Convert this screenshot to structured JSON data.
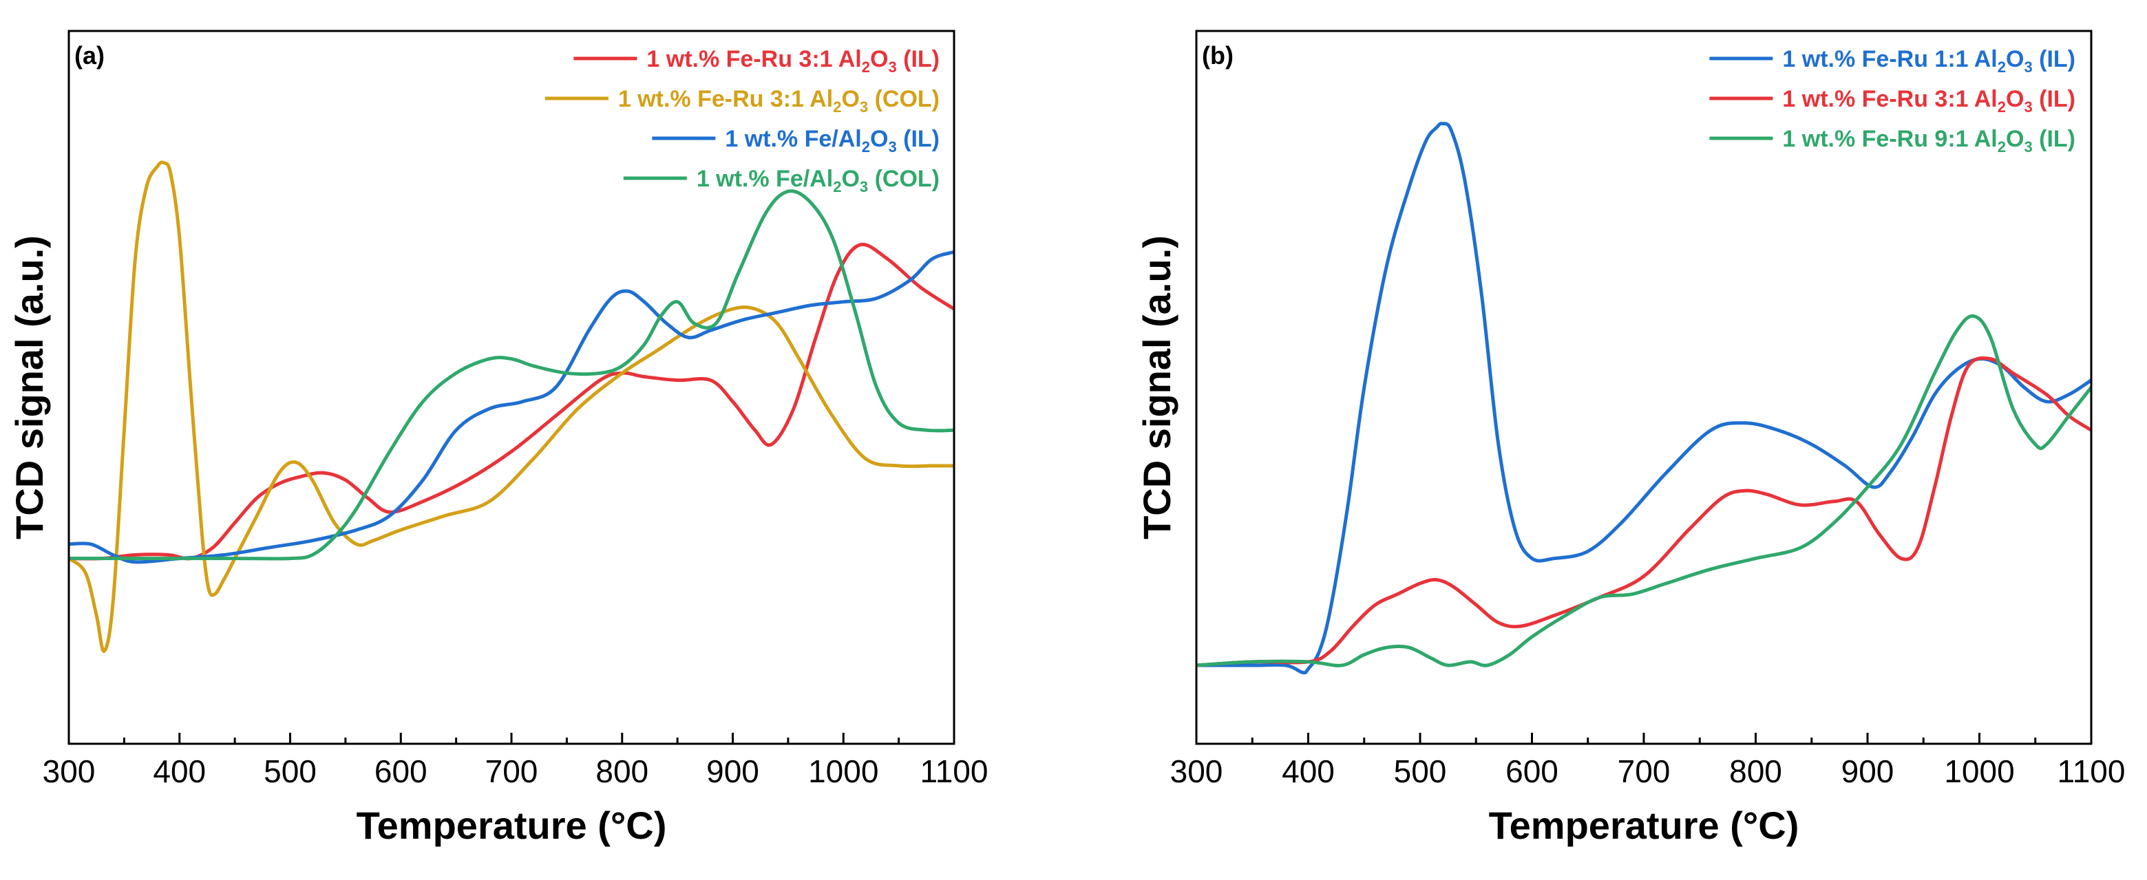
{
  "chart_data": [
    {
      "type": "line",
      "panel_label": "(a)",
      "xlabel": "Temperature (°C)",
      "ylabel": "TCD signal (a.u.)",
      "xlim": [
        300,
        1100
      ],
      "ylim": [
        0,
        100
      ],
      "xticks": [
        300,
        400,
        500,
        600,
        700,
        800,
        900,
        1000,
        1100
      ],
      "yticks_shown": false,
      "legend_position": "top-right",
      "series": [
        {
          "name": "1 wt.% Fe-Ru 3:1 Al2O3 (IL)",
          "legend": {
            "prefix": "1 wt.% Fe-Ru 3:1 Al",
            "sub": "2",
            "mid": "O",
            "sub2": "3",
            "suffix": " (IL)"
          },
          "color": "#e8333a",
          "x": [
            300,
            330,
            360,
            390,
            410,
            430,
            450,
            470,
            490,
            510,
            530,
            550,
            570,
            590,
            620,
            660,
            700,
            740,
            780,
            800,
            820,
            850,
            880,
            900,
            920,
            935,
            955,
            975,
            995,
            1015,
            1040,
            1070,
            1100
          ],
          "y": [
            26,
            26,
            26.5,
            26.5,
            26,
            27.5,
            31,
            34.5,
            36.5,
            37.5,
            38,
            37,
            34.5,
            32.5,
            34,
            37,
            41,
            46,
            51,
            52,
            51.5,
            51,
            51,
            48,
            44,
            42,
            47,
            57,
            66,
            70,
            68,
            64,
            61
          ]
        },
        {
          "name": "1 wt.% Fe-Ru 3:1 Al2O3 (COL)",
          "legend": {
            "prefix": "1 wt.% Fe-Ru 3:1 Al",
            "sub": "2",
            "mid": "O",
            "sub2": "3",
            "suffix": " (COL)"
          },
          "color": "#d4a017",
          "x": [
            300,
            315,
            325,
            332,
            340,
            350,
            360,
            370,
            380,
            386,
            392,
            400,
            410,
            420,
            426,
            432,
            440,
            450,
            470,
            490,
            505,
            520,
            540,
            560,
            575,
            600,
            640,
            680,
            720,
            760,
            800,
            830,
            870,
            900,
            920,
            940,
            960,
            990,
            1020,
            1050,
            1080,
            1100
          ],
          "y": [
            26,
            24,
            18,
            13,
            20,
            44,
            68,
            78,
            81,
            81.5,
            80,
            71,
            50,
            30,
            22,
            21,
            23,
            26,
            32,
            38,
            39.5,
            37,
            31,
            28,
            28.5,
            30,
            32,
            34,
            40,
            47,
            52,
            55,
            59,
            61,
            61,
            59,
            54,
            46,
            40,
            39,
            39,
            39
          ]
        },
        {
          "name": "1 wt.% Fe/Al2O3 (IL)",
          "legend": {
            "prefix": "1 wt.% Fe/Al",
            "sub": "2",
            "mid": "O",
            "sub2": "3",
            "suffix": " (IL)"
          },
          "color": "#1f6fd1",
          "x": [
            300,
            320,
            340,
            360,
            400,
            440,
            480,
            520,
            560,
            590,
            620,
            650,
            680,
            710,
            740,
            770,
            790,
            805,
            820,
            840,
            860,
            880,
            910,
            940,
            970,
            1000,
            1030,
            1060,
            1080,
            1100
          ],
          "y": [
            28,
            28,
            26.5,
            25.5,
            26,
            26.5,
            27.5,
            28.5,
            30,
            32,
            37,
            44,
            47,
            48,
            50,
            58,
            62.5,
            63.5,
            62,
            59,
            57,
            58,
            59.5,
            60.5,
            61.5,
            62,
            62.5,
            65,
            68,
            69
          ]
        },
        {
          "name": "1 wt.% Fe/Al2O3 (COL)",
          "legend": {
            "prefix": "1 wt.% Fe/Al",
            "sub": "2",
            "mid": "O",
            "sub2": "3",
            "suffix": " (COL)"
          },
          "color": "#2fa86b",
          "x": [
            300,
            350,
            400,
            450,
            500,
            520,
            540,
            560,
            590,
            620,
            650,
            680,
            700,
            720,
            750,
            780,
            800,
            820,
            835,
            850,
            865,
            885,
            905,
            930,
            950,
            970,
            990,
            1010,
            1030,
            1050,
            1075,
            1100
          ],
          "y": [
            26,
            26,
            26,
            26,
            26,
            26.5,
            29,
            33,
            41,
            48,
            52,
            54,
            54,
            53,
            52,
            52,
            53,
            56,
            60,
            62,
            59,
            59,
            66,
            74.5,
            77.5,
            76,
            71,
            61,
            50,
            45,
            44,
            44
          ]
        }
      ]
    },
    {
      "type": "line",
      "panel_label": "(b)",
      "xlabel": "Temperature (°C)",
      "ylabel": "TCD signal (a.u.)",
      "xlim": [
        300,
        1100
      ],
      "ylim": [
        0,
        100
      ],
      "xticks": [
        300,
        400,
        500,
        600,
        700,
        800,
        900,
        1000,
        1100
      ],
      "yticks_shown": false,
      "legend_position": "top-right",
      "series": [
        {
          "name": "1 wt.% Fe-Ru 1:1 Al2O3 (IL)",
          "legend": {
            "prefix": "1 wt.% Fe-Ru 1:1 Al",
            "sub": "2",
            "mid": "O",
            "sub2": "3",
            "suffix": " (IL)"
          },
          "color": "#1f6fd1",
          "x": [
            300,
            350,
            380,
            395,
            400,
            410,
            420,
            435,
            450,
            470,
            490,
            505,
            515,
            520,
            528,
            540,
            555,
            570,
            585,
            600,
            620,
            650,
            680,
            720,
            760,
            790,
            820,
            850,
            880,
            905,
            920,
            940,
            960,
            980,
            1000,
            1020,
            1040,
            1060,
            1080,
            1100
          ],
          "y": [
            11,
            11,
            11,
            10,
            10.5,
            13,
            19,
            33,
            50,
            67,
            78,
            84.5,
            86.5,
            87,
            86,
            79,
            63,
            42,
            30,
            26,
            26,
            27,
            31,
            38,
            44,
            45,
            44,
            42,
            39,
            36,
            38,
            43,
            49,
            52.5,
            54,
            53,
            50,
            48,
            49,
            51
          ]
        },
        {
          "name": "1 wt.% Fe-Ru 3:1 Al2O3 (IL)",
          "legend": {
            "prefix": "1 wt.% Fe-Ru 3:1 Al",
            "sub": "2",
            "mid": "O",
            "sub2": "3",
            "suffix": " (IL)"
          },
          "color": "#e8333a",
          "x": [
            300,
            350,
            400,
            420,
            440,
            460,
            480,
            500,
            515,
            530,
            550,
            570,
            590,
            620,
            660,
            700,
            740,
            770,
            790,
            810,
            840,
            870,
            890,
            910,
            930,
            945,
            960,
            975,
            990,
            1010,
            1030,
            1060,
            1080,
            1100
          ],
          "y": [
            11,
            11.5,
            11.5,
            13,
            16.5,
            19.5,
            21,
            22.5,
            23,
            22,
            19.5,
            17,
            16.5,
            18,
            20.5,
            23.5,
            30,
            34.5,
            35.5,
            35,
            33.5,
            34,
            34,
            29.5,
            26,
            27.5,
            36,
            46,
            53,
            54,
            52,
            49,
            46,
            44
          ]
        },
        {
          "name": "1 wt.% Fe-Ru 9:1 Al2O3 (IL)",
          "legend": {
            "prefix": "1 wt.% Fe-Ru 9:1 Al",
            "sub": "2",
            "mid": "O",
            "sub2": "3",
            "suffix": " (IL)"
          },
          "color": "#2fa86b",
          "x": [
            300,
            350,
            400,
            430,
            450,
            470,
            490,
            510,
            525,
            545,
            560,
            580,
            600,
            630,
            660,
            690,
            720,
            760,
            800,
            840,
            870,
            900,
            930,
            960,
            980,
            995,
            1010,
            1030,
            1050,
            1060,
            1080,
            1100
          ],
          "y": [
            11,
            11.5,
            11.5,
            11,
            12.5,
            13.5,
            13.5,
            12,
            11,
            11.5,
            11,
            12.5,
            15,
            18,
            20.5,
            21,
            22.5,
            24.5,
            26,
            27.5,
            31,
            36,
            42,
            52,
            58,
            60,
            57,
            47,
            42,
            42,
            46,
            50
          ]
        }
      ]
    }
  ]
}
